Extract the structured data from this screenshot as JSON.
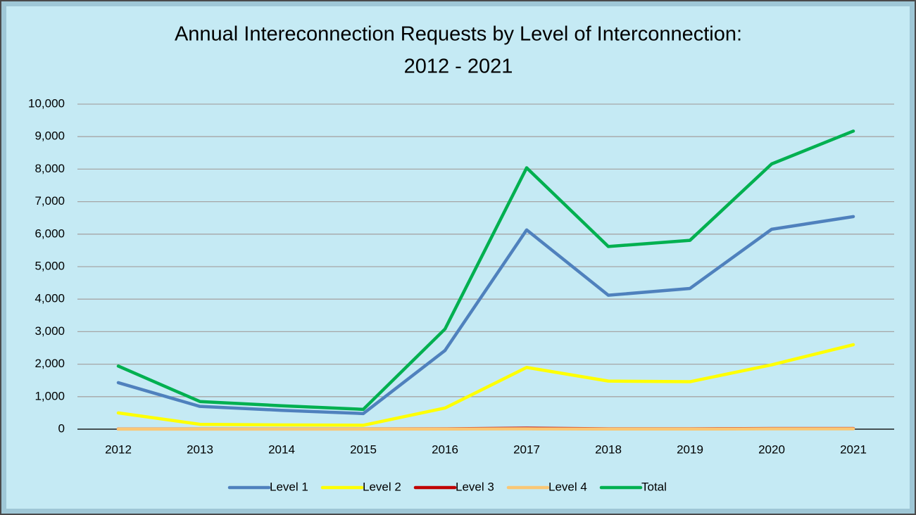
{
  "chart_data": {
    "type": "line",
    "title": [
      "Annual Intereconnection Requests by Level of Interconnection:",
      "2012 - 2021"
    ],
    "categories": [
      "2012",
      "2013",
      "2014",
      "2015",
      "2016",
      "2017",
      "2018",
      "2019",
      "2020",
      "2021"
    ],
    "series": [
      {
        "name": "Level 1",
        "color": "#4f81bd",
        "values": [
          1430,
          700,
          580,
          480,
          2420,
          6130,
          4120,
          4330,
          6150,
          6540
        ]
      },
      {
        "name": "Level 2",
        "color": "#ffff00",
        "values": [
          500,
          150,
          130,
          120,
          650,
          1900,
          1480,
          1460,
          1980,
          2600
        ]
      },
      {
        "name": "Level 3",
        "color": "#c00000",
        "values": [
          5,
          5,
          5,
          5,
          10,
          30,
          10,
          10,
          20,
          20
        ]
      },
      {
        "name": "Level 4",
        "color": "#fac775",
        "values": [
          2,
          2,
          2,
          2,
          5,
          10,
          5,
          5,
          10,
          10
        ]
      },
      {
        "name": "Total",
        "color": "#00b050",
        "values": [
          1940,
          850,
          720,
          610,
          3080,
          8040,
          5620,
          5810,
          8160,
          9170
        ]
      }
    ],
    "ylim": [
      0,
      10000
    ],
    "yticks": [
      0,
      {
        "value": 1000,
        "label": "1,000"
      },
      {
        "value": 2000,
        "label": "2,000"
      },
      {
        "value": 3000,
        "label": "3,000"
      },
      {
        "value": 4000,
        "label": "4,000"
      },
      {
        "value": 5000,
        "label": "5,000"
      },
      {
        "value": 6000,
        "label": "6,000"
      },
      {
        "value": 7000,
        "label": "7,000"
      },
      {
        "value": 8000,
        "label": "8,000"
      },
      {
        "value": 9000,
        "label": "9,000"
      },
      {
        "value": 10000,
        "label": "10,000"
      }
    ],
    "grid": true,
    "legend": "bottom"
  }
}
